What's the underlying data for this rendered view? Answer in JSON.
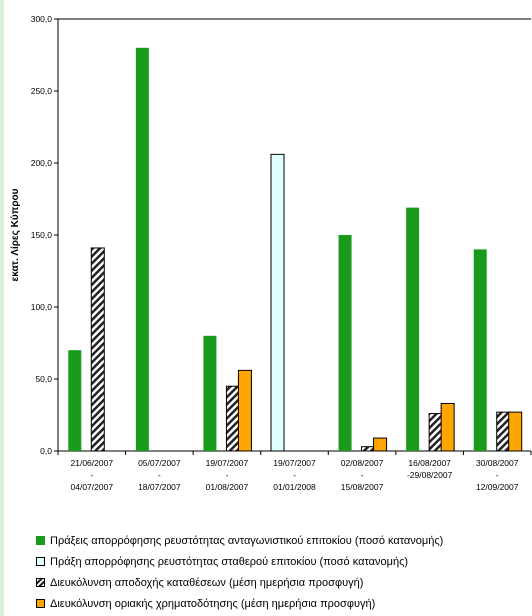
{
  "chart_data": {
    "type": "bar",
    "ylabel": "εκατ. Λίρες Κύπρου",
    "ylim": [
      0,
      300
    ],
    "yticks": [
      "0,0",
      "50,0",
      "100,0",
      "150,0",
      "200,0",
      "250,0",
      "300,0"
    ],
    "ytick_values": [
      0,
      50,
      100,
      150,
      200,
      250,
      300
    ],
    "categories": [
      [
        "21/06/2007",
        "-",
        "04/07/2007"
      ],
      [
        "05/07/2007",
        "-",
        "18/07/2007"
      ],
      [
        "19/07/2007",
        "-",
        "01/08/2007"
      ],
      [
        "19/07/2007",
        "-",
        "01/01/2008"
      ],
      [
        "02/08/2007",
        "-",
        "15/08/2007"
      ],
      [
        "16/08/2007",
        "-29/08/2007",
        ""
      ],
      [
        "30/08/2007",
        "-",
        "12/09/2007"
      ]
    ],
    "series": [
      {
        "name": "Πράξεις απορρόφησης ρευστότητας ανταγωνιστικού επιτοκίου (ποσό κατανομής)",
        "color": "#1a9a1a",
        "style": "solid",
        "values": [
          70,
          280,
          80,
          0,
          150,
          169,
          140
        ]
      },
      {
        "name": "Πράξη απορρόφησης ρευστότητας σταθερού επιτοκίου (ποσό κατανομής)",
        "color": "#e0ffff",
        "style": "outlined",
        "values": [
          0,
          0,
          0,
          206,
          0,
          0,
          0
        ]
      },
      {
        "name": "Διευκόλυνση αποδοχής καταθέσεων (μέση ημερήσια προσφυγή)",
        "color": "#222222",
        "style": "hatched",
        "values": [
          141,
          0,
          45,
          0,
          3,
          26,
          27
        ]
      },
      {
        "name": "Διευκόλυνση οριακής χρηματοδότησης (μέση ημερήσια προσφυγή)",
        "color": "#ffa500",
        "style": "outlined",
        "values": [
          0,
          0,
          56,
          0,
          9,
          33,
          27
        ]
      }
    ],
    "grid": false,
    "legend_position": "bottom"
  }
}
